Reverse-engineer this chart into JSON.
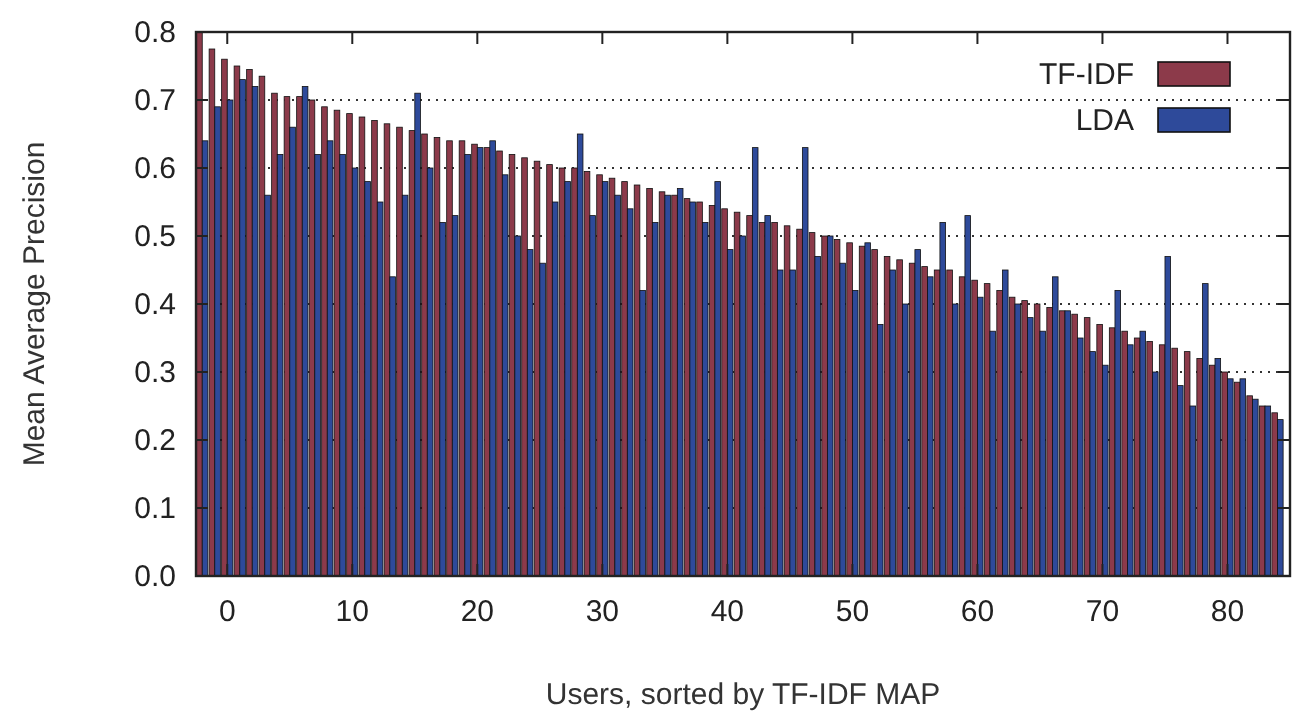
{
  "chart_data": {
    "type": "bar",
    "xlabel": "Users, sorted by TF-IDF MAP",
    "ylabel": "Mean Average Precision",
    "x": [
      -2,
      -1,
      0,
      1,
      2,
      3,
      4,
      5,
      6,
      7,
      8,
      9,
      10,
      11,
      12,
      13,
      14,
      15,
      16,
      17,
      18,
      19,
      20,
      21,
      22,
      23,
      24,
      25,
      26,
      27,
      28,
      29,
      30,
      31,
      32,
      33,
      34,
      35,
      36,
      37,
      38,
      39,
      40,
      41,
      42,
      43,
      44,
      45,
      46,
      47,
      48,
      49,
      50,
      51,
      52,
      53,
      54,
      55,
      56,
      57,
      58,
      59,
      60,
      61,
      62,
      63,
      64,
      65,
      66,
      67,
      68,
      69,
      70,
      71,
      72,
      73,
      74,
      75,
      76,
      77,
      78,
      79,
      80,
      81,
      82,
      83,
      84
    ],
    "series": [
      {
        "name": "TF-IDF",
        "color": "#8c3a4a",
        "values": [
          0.8,
          0.775,
          0.76,
          0.75,
          0.745,
          0.735,
          0.71,
          0.705,
          0.705,
          0.7,
          0.69,
          0.685,
          0.68,
          0.675,
          0.67,
          0.665,
          0.66,
          0.655,
          0.65,
          0.645,
          0.64,
          0.64,
          0.635,
          0.63,
          0.625,
          0.62,
          0.615,
          0.61,
          0.605,
          0.6,
          0.6,
          0.595,
          0.59,
          0.585,
          0.58,
          0.575,
          0.57,
          0.565,
          0.56,
          0.555,
          0.55,
          0.545,
          0.54,
          0.535,
          0.53,
          0.52,
          0.52,
          0.515,
          0.51,
          0.505,
          0.5,
          0.495,
          0.49,
          0.485,
          0.48,
          0.47,
          0.465,
          0.46,
          0.455,
          0.45,
          0.45,
          0.44,
          0.435,
          0.43,
          0.42,
          0.41,
          0.405,
          0.4,
          0.395,
          0.39,
          0.385,
          0.38,
          0.37,
          0.365,
          0.36,
          0.35,
          0.345,
          0.34,
          0.335,
          0.33,
          0.32,
          0.31,
          0.3,
          0.285,
          0.265,
          0.25,
          0.24
        ]
      },
      {
        "name": "LDA",
        "color": "#2e4a9a",
        "values": [
          0.64,
          0.69,
          0.7,
          0.73,
          0.72,
          0.56,
          0.62,
          0.66,
          0.72,
          0.62,
          0.64,
          0.62,
          0.6,
          0.58,
          0.55,
          0.44,
          0.56,
          0.71,
          0.6,
          0.52,
          0.53,
          0.62,
          0.63,
          0.64,
          0.59,
          0.5,
          0.48,
          0.46,
          0.55,
          0.58,
          0.65,
          0.53,
          0.58,
          0.56,
          0.54,
          0.42,
          0.52,
          0.56,
          0.57,
          0.55,
          0.52,
          0.58,
          0.48,
          0.5,
          0.63,
          0.53,
          0.45,
          0.45,
          0.63,
          0.47,
          0.5,
          0.46,
          0.42,
          0.49,
          0.37,
          0.45,
          0.4,
          0.48,
          0.44,
          0.52,
          0.4,
          0.53,
          0.41,
          0.36,
          0.45,
          0.4,
          0.38,
          0.36,
          0.44,
          0.39,
          0.35,
          0.33,
          0.31,
          0.42,
          0.34,
          0.36,
          0.3,
          0.47,
          0.28,
          0.25,
          0.43,
          0.32,
          0.29,
          0.29,
          0.26,
          0.25,
          0.23
        ]
      }
    ],
    "xlim": [
      -2.5,
      85
    ],
    "xticks": [
      0,
      10,
      20,
      30,
      40,
      50,
      60,
      70,
      80
    ],
    "ylim": [
      0,
      0.8
    ],
    "yticks": [
      {
        "value": 0,
        "label": "0.0"
      },
      {
        "value": 0.1,
        "label": "0.1"
      },
      {
        "value": 0.2,
        "label": "0.2"
      },
      {
        "value": 0.3,
        "label": "0.3"
      },
      {
        "value": 0.4,
        "label": "0.4"
      },
      {
        "value": 0.5,
        "label": "0.5"
      },
      {
        "value": 0.6,
        "label": "0.6"
      },
      {
        "value": 0.7,
        "label": "0.7"
      },
      {
        "value": 0.8,
        "label": "0.8"
      }
    ],
    "grid": "y",
    "legend": "top right"
  }
}
